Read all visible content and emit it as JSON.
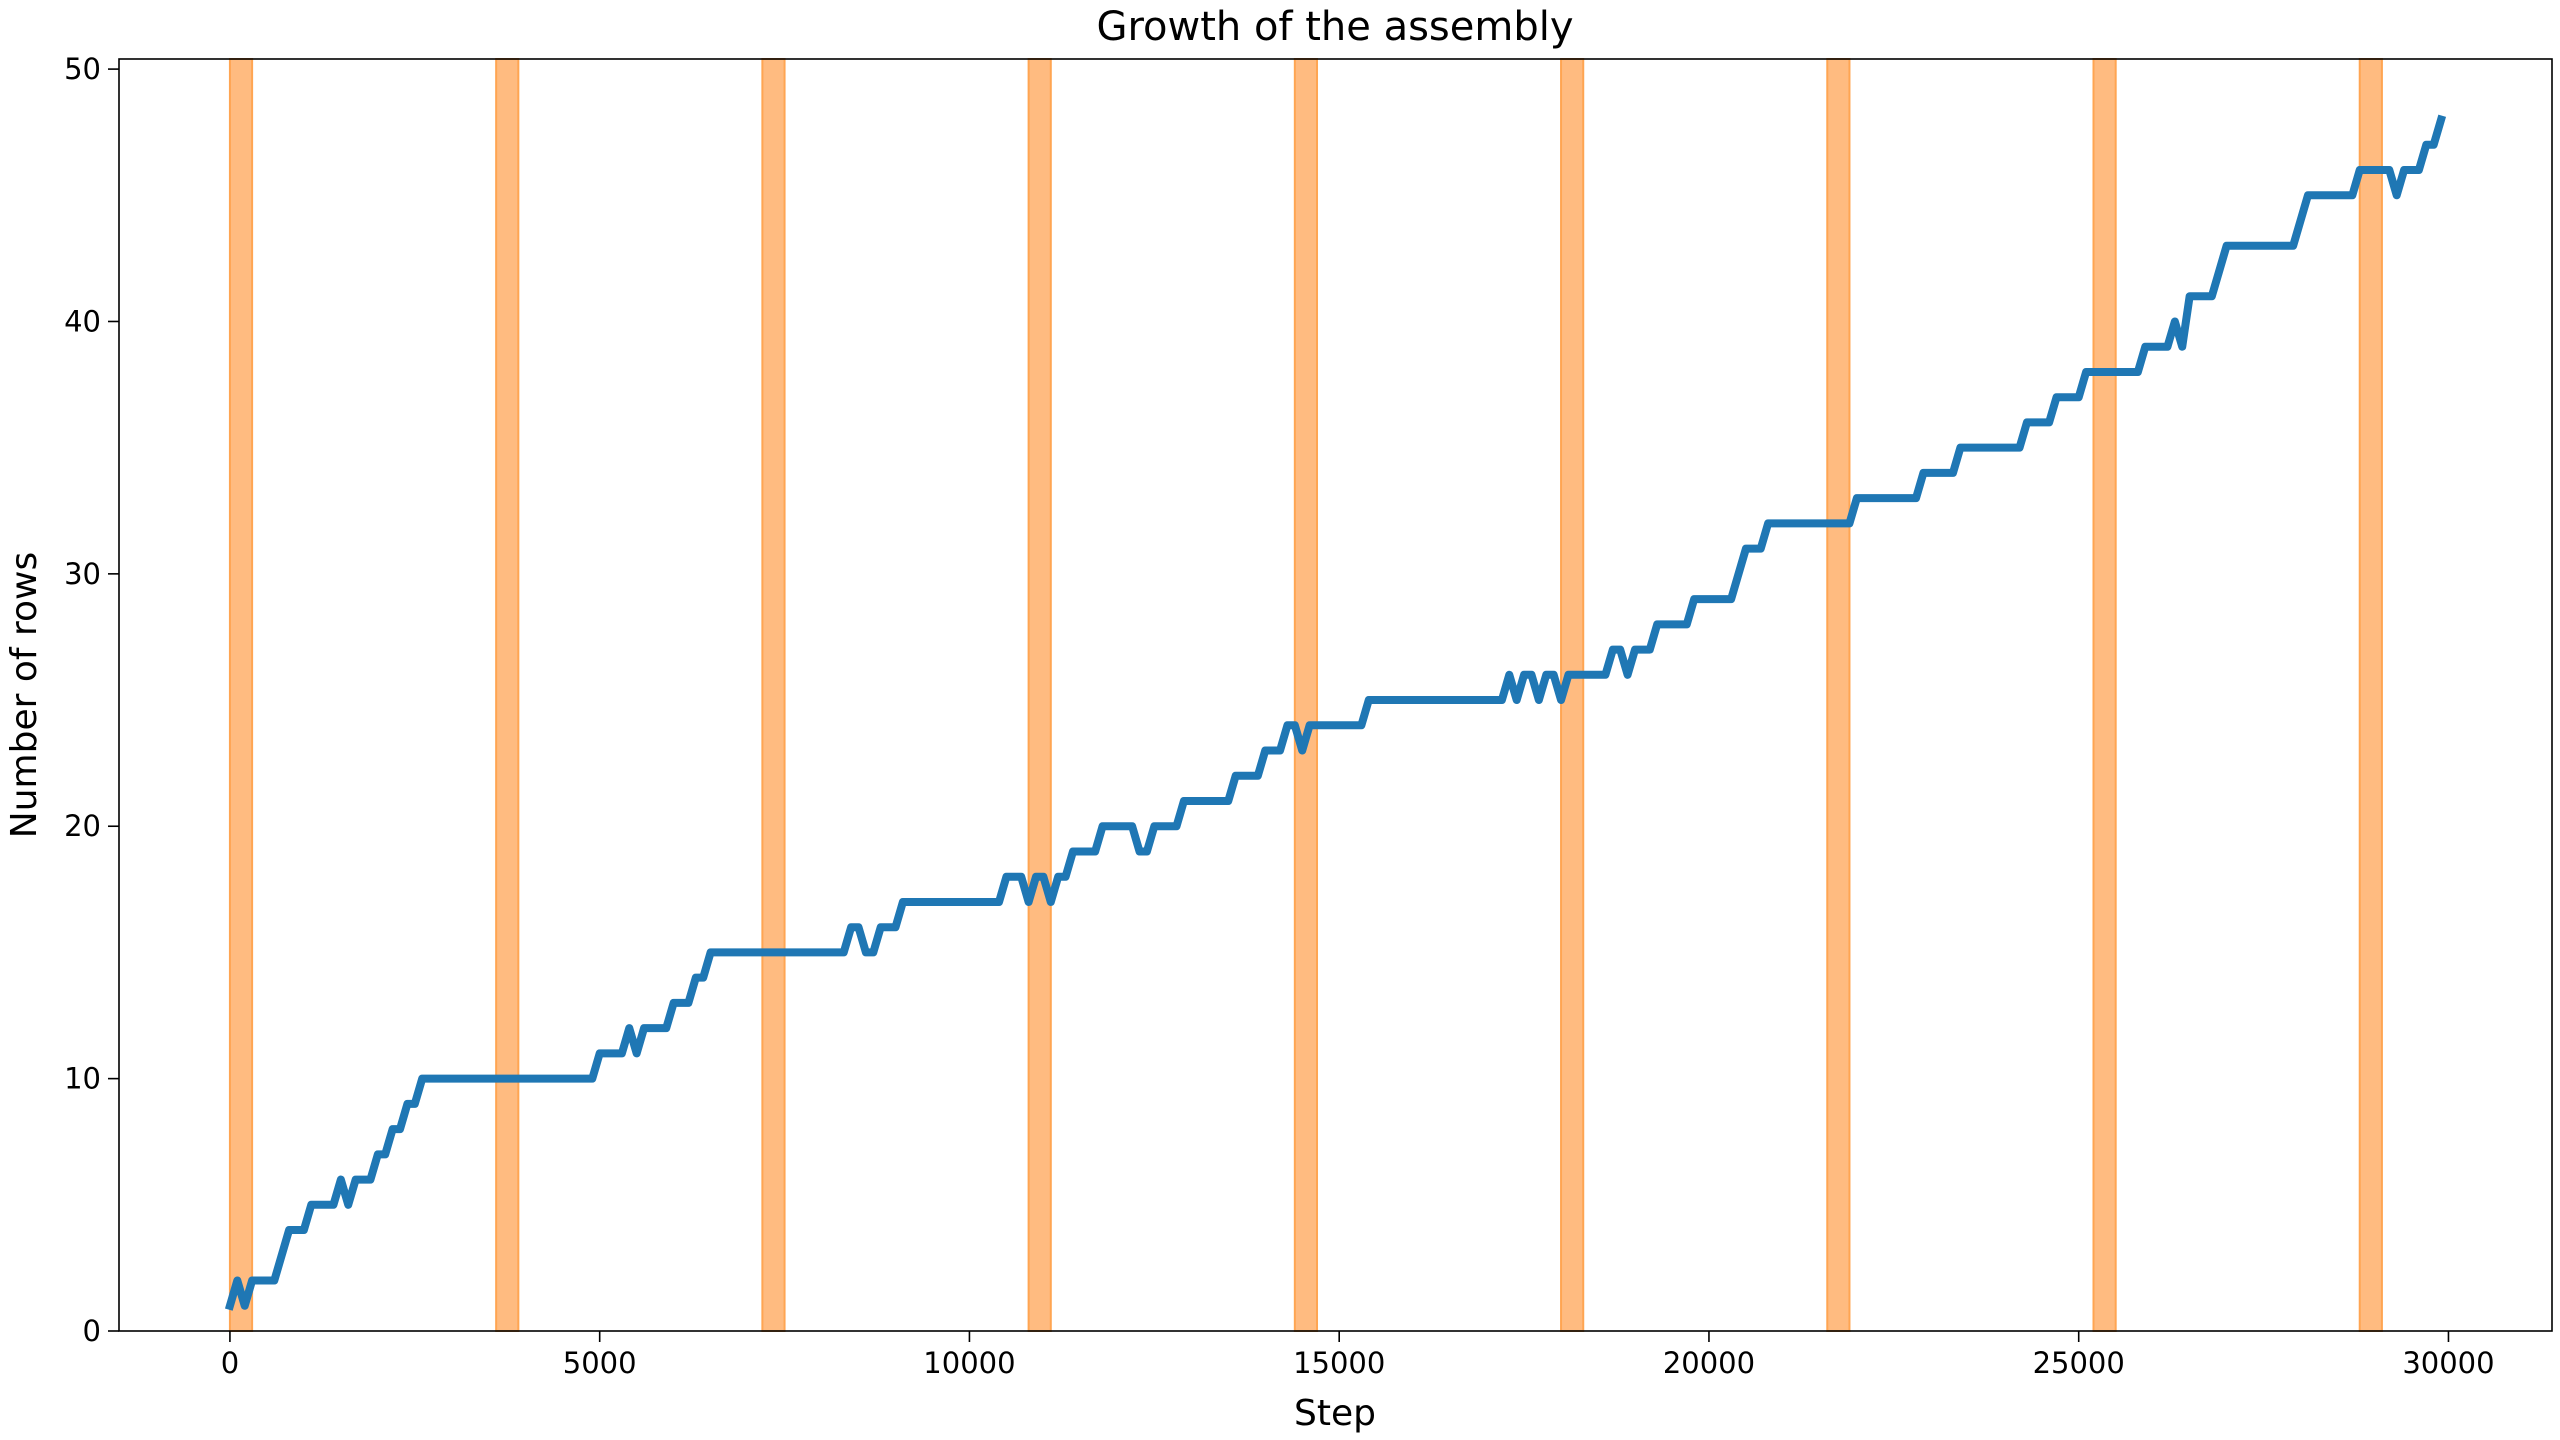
{
  "chart_data": {
    "type": "line",
    "title": "Growth of the assembly",
    "x_label": "Step",
    "y_label": "Number of rows",
    "xlim": [
      -1500,
      31400
    ],
    "ylim": [
      0,
      50.4
    ],
    "xticks": [
      0,
      5000,
      10000,
      15000,
      20000,
      25000,
      30000
    ],
    "yticks": [
      0,
      10,
      20,
      30,
      40,
      50
    ],
    "grid": false,
    "span_color": "#ffbb80",
    "spans": [
      {
        "start": 0,
        "end": 300
      },
      {
        "start": 3600,
        "end": 3900
      },
      {
        "start": 7200,
        "end": 7500
      },
      {
        "start": 10800,
        "end": 11100
      },
      {
        "start": 14400,
        "end": 14700
      },
      {
        "start": 18000,
        "end": 18300
      },
      {
        "start": 21600,
        "end": 21900
      },
      {
        "start": 25200,
        "end": 25500
      },
      {
        "start": 28800,
        "end": 29100
      }
    ],
    "x": [
      0,
      100,
      200,
      300,
      600,
      800,
      1000,
      1100,
      1400,
      1500,
      1600,
      1700,
      1900,
      2000,
      2100,
      2200,
      2300,
      2400,
      2500,
      2600,
      4900,
      5000,
      5300,
      5400,
      5500,
      5600,
      5900,
      6000,
      6200,
      6300,
      6400,
      6500,
      8300,
      8400,
      8500,
      8600,
      8700,
      8800,
      9000,
      9100,
      10400,
      10500,
      10700,
      10800,
      10900,
      11000,
      11100,
      11200,
      11300,
      11400,
      11700,
      11800,
      12200,
      12300,
      12400,
      12500,
      12800,
      12900,
      13500,
      13600,
      13900,
      14000,
      14200,
      14300,
      14400,
      14500,
      14600,
      15300,
      15400,
      17200,
      17300,
      17400,
      17500,
      17600,
      17700,
      17800,
      17900,
      18000,
      18100,
      18600,
      18700,
      18800,
      18900,
      19000,
      19200,
      19300,
      19700,
      19800,
      20300,
      20500,
      20700,
      20800,
      21900,
      22000,
      22800,
      22900,
      23300,
      23400,
      24200,
      24300,
      24600,
      24700,
      25000,
      25100,
      25800,
      25900,
      26200,
      26300,
      26400,
      26500,
      26800,
      27000,
      27900,
      28100,
      28700,
      28800,
      29200,
      29300,
      29400,
      29600,
      29700,
      29800,
      29900
    ],
    "series": [
      {
        "name": "rows",
        "color": "#1f77b4",
        "values": [
          1,
          2,
          1,
          2,
          2,
          4,
          4,
          5,
          5,
          6,
          5,
          6,
          6,
          7,
          7,
          8,
          8,
          9,
          9,
          10,
          10,
          11,
          11,
          12,
          11,
          12,
          12,
          13,
          13,
          14,
          14,
          15,
          15,
          16,
          16,
          15,
          15,
          16,
          16,
          17,
          17,
          18,
          18,
          17,
          18,
          18,
          17,
          18,
          18,
          19,
          19,
          20,
          20,
          19,
          19,
          20,
          20,
          21,
          21,
          22,
          22,
          23,
          23,
          24,
          24,
          23,
          24,
          24,
          25,
          25,
          26,
          25,
          26,
          26,
          25,
          26,
          26,
          25,
          26,
          26,
          27,
          27,
          26,
          27,
          27,
          28,
          28,
          29,
          29,
          31,
          31,
          32,
          32,
          33,
          33,
          34,
          34,
          35,
          35,
          36,
          36,
          37,
          37,
          38,
          38,
          39,
          39,
          40,
          39,
          41,
          41,
          43,
          43,
          45,
          45,
          46,
          46,
          45,
          46,
          46,
          47,
          47,
          48
        ]
      }
    ]
  }
}
